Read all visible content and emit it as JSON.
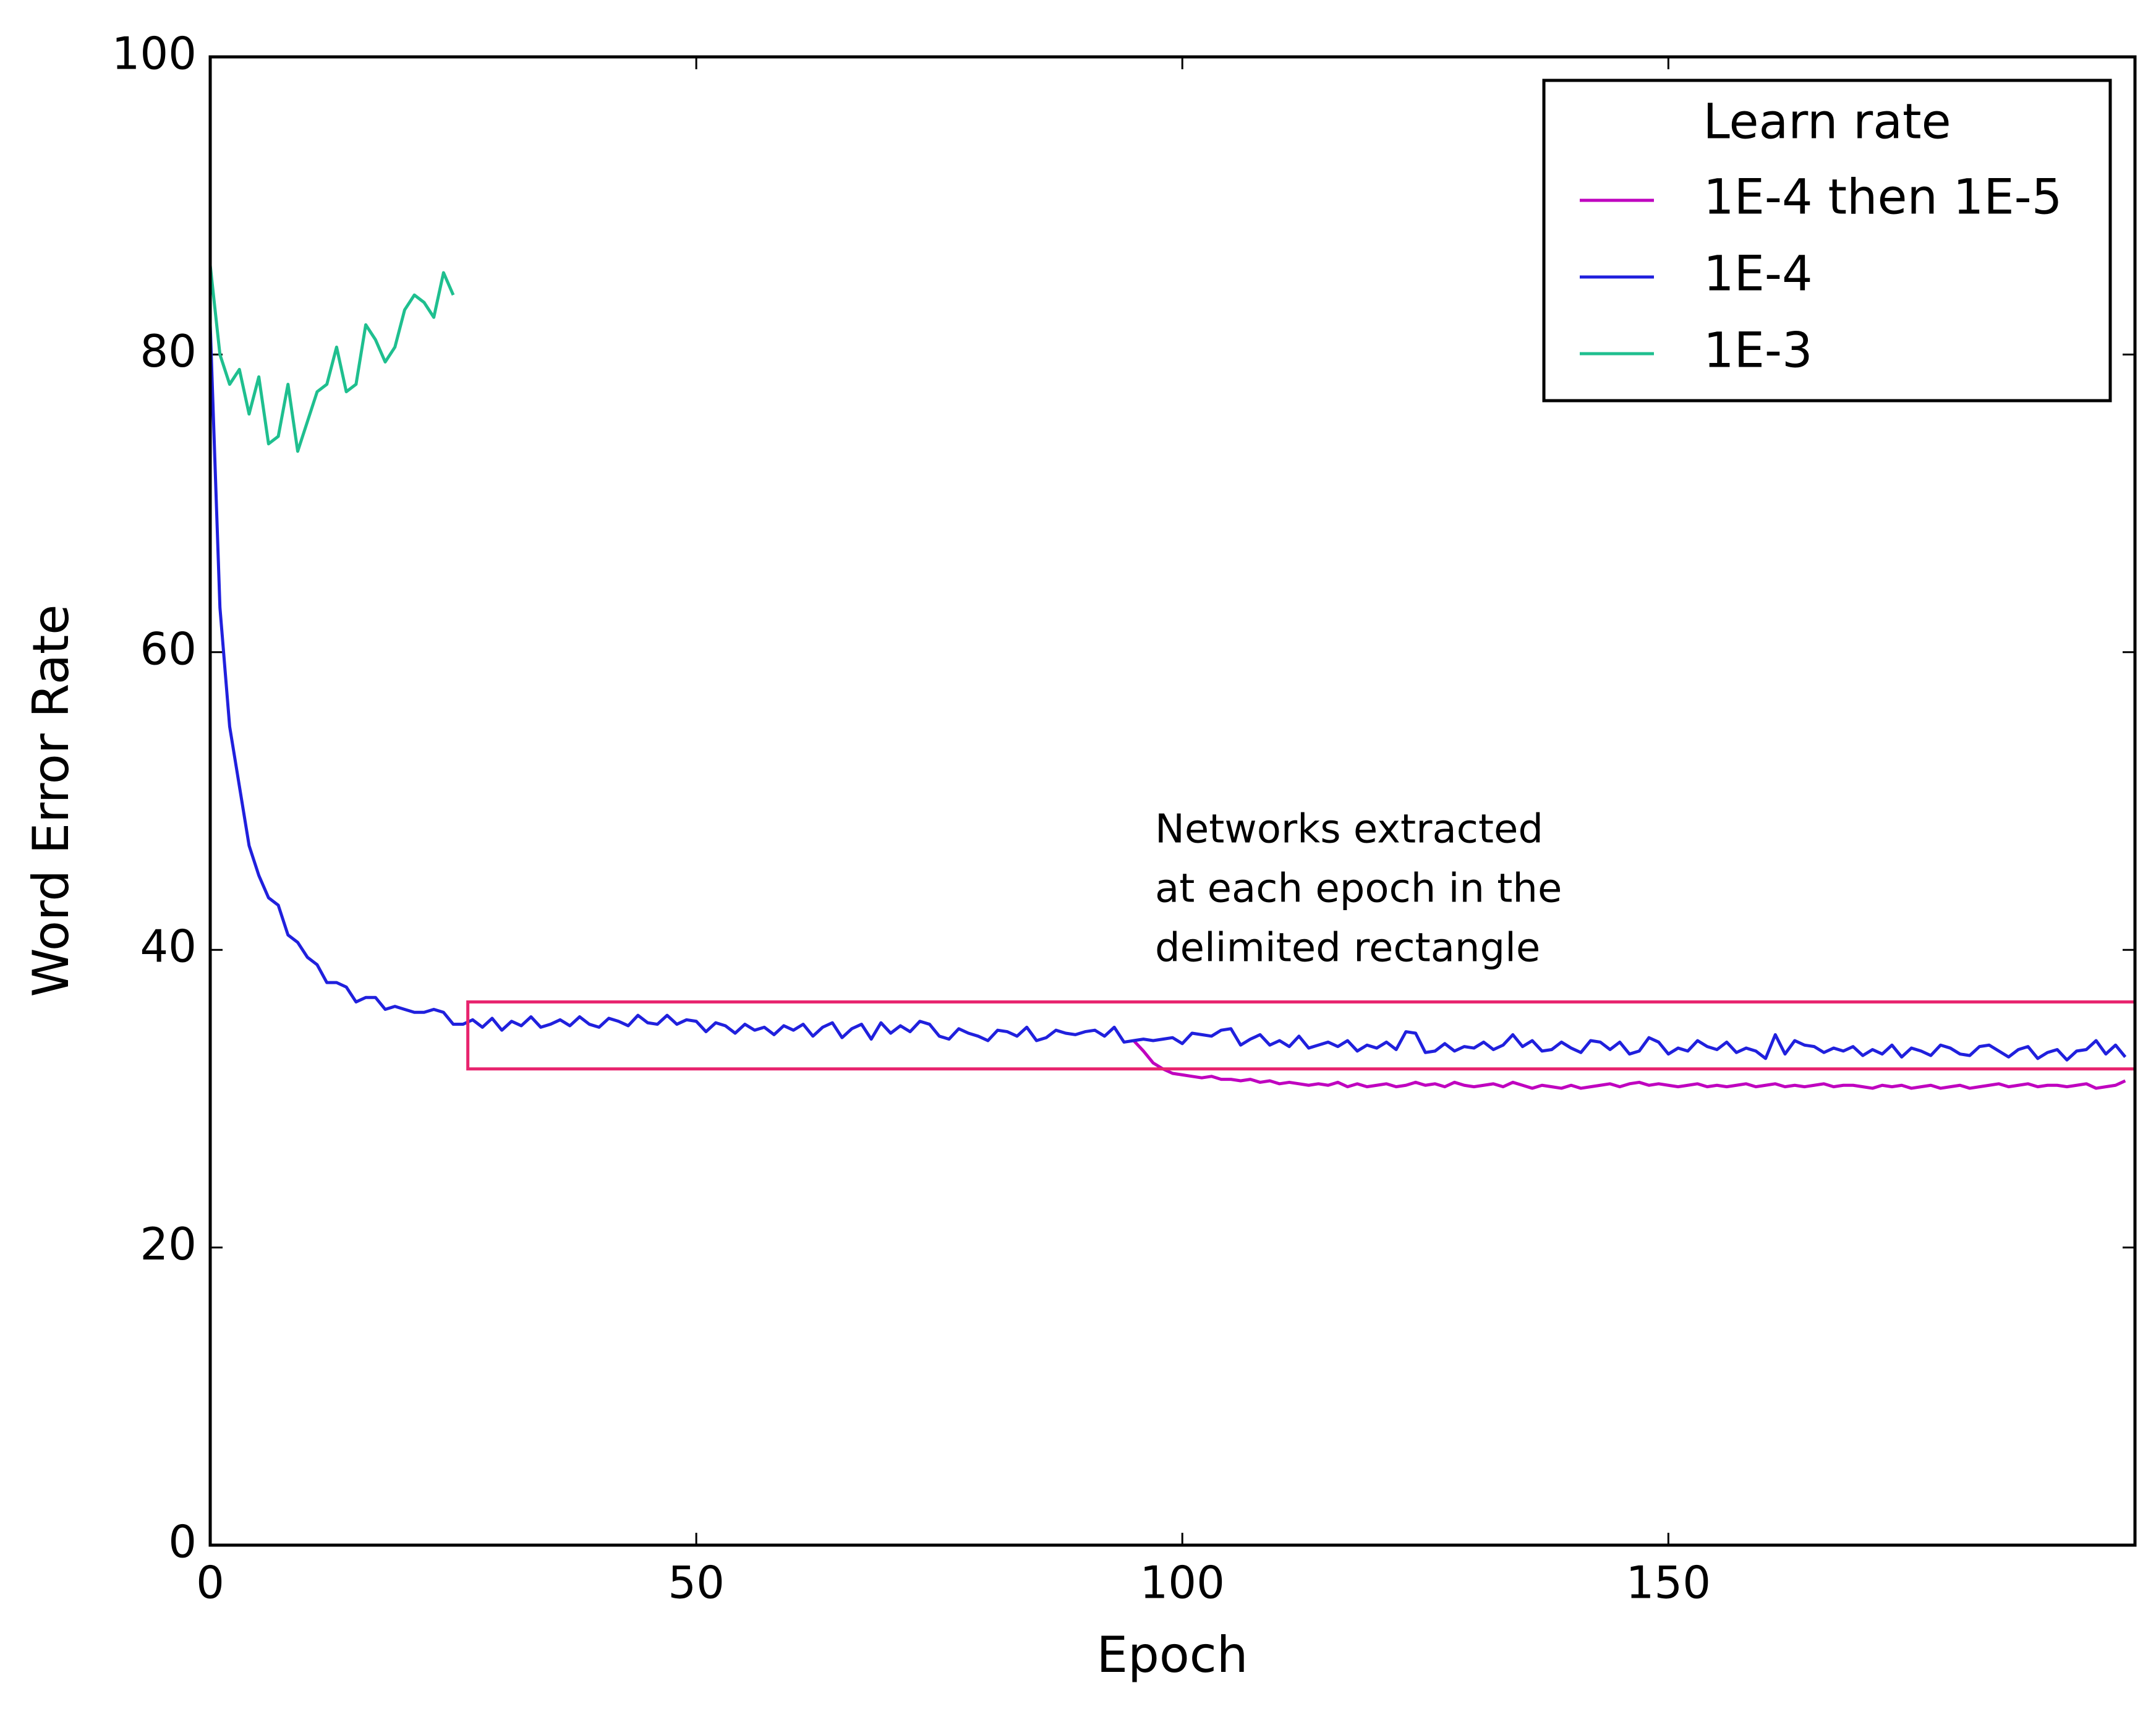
{
  "chart_data": {
    "type": "line",
    "xlabel": "Epoch",
    "ylabel": "Word Error Rate",
    "xlim": [
      0,
      198
    ],
    "ylim": [
      0,
      100
    ],
    "xticks": [
      0,
      50,
      100,
      150
    ],
    "yticks": [
      0,
      20,
      40,
      60,
      80,
      100
    ],
    "legend": {
      "title": "Learn rate",
      "loc": "upper right"
    },
    "series": [
      {
        "name": "1E-4 then 1E-5",
        "color": "#bf00bf",
        "x": [
          95,
          96,
          97,
          98,
          99,
          100,
          101,
          102,
          103,
          104,
          105,
          106,
          107,
          108,
          109,
          110,
          111,
          112,
          113,
          114,
          115,
          116,
          117,
          118,
          119,
          120,
          121,
          122,
          123,
          124,
          125,
          126,
          127,
          128,
          129,
          130,
          131,
          132,
          133,
          134,
          135,
          136,
          137,
          138,
          139,
          140,
          141,
          142,
          143,
          144,
          145,
          146,
          147,
          148,
          149,
          150,
          151,
          152,
          153,
          154,
          155,
          156,
          157,
          158,
          159,
          160,
          161,
          162,
          163,
          164,
          165,
          166,
          167,
          168,
          169,
          170,
          171,
          172,
          173,
          174,
          175,
          176,
          177,
          178,
          179,
          180,
          181,
          182,
          183,
          184,
          185,
          186,
          187,
          188,
          189,
          190,
          191,
          192,
          193,
          194,
          195,
          196,
          197
        ],
        "values": [
          33.9,
          33.2,
          32.4,
          32.0,
          31.7,
          31.6,
          31.5,
          31.4,
          31.5,
          31.3,
          31.3,
          31.2,
          31.3,
          31.1,
          31.2,
          31.0,
          31.1,
          31.0,
          30.9,
          31.0,
          30.9,
          31.1,
          30.8,
          31.0,
          30.8,
          30.9,
          31.0,
          30.8,
          30.9,
          31.1,
          30.9,
          31.0,
          30.8,
          31.1,
          30.9,
          30.8,
          30.9,
          31.0,
          30.8,
          31.1,
          30.9,
          30.7,
          30.9,
          30.8,
          30.7,
          30.9,
          30.7,
          30.8,
          30.9,
          31.0,
          30.8,
          31.0,
          31.1,
          30.9,
          31.0,
          30.9,
          30.8,
          30.9,
          31.0,
          30.8,
          30.9,
          30.8,
          30.9,
          31.0,
          30.8,
          30.9,
          31.0,
          30.8,
          30.9,
          30.8,
          30.9,
          31.0,
          30.8,
          30.9,
          30.9,
          30.8,
          30.7,
          30.9,
          30.8,
          30.9,
          30.7,
          30.8,
          30.9,
          30.7,
          30.8,
          30.9,
          30.7,
          30.8,
          30.9,
          31.0,
          30.8,
          30.9,
          31.0,
          30.8,
          30.9,
          30.9,
          30.8,
          30.9,
          31.0,
          30.7,
          30.8,
          30.9,
          31.2
        ]
      },
      {
        "name": "1E-4",
        "color": "#2020dd",
        "x": [
          0,
          1,
          2,
          3,
          4,
          5,
          6,
          7,
          8,
          9,
          10,
          11,
          12,
          13,
          14,
          15,
          16,
          17,
          18,
          19,
          20,
          21,
          22,
          23,
          24,
          25,
          26,
          27,
          28,
          29,
          30,
          31,
          32,
          33,
          34,
          35,
          36,
          37,
          38,
          39,
          40,
          41,
          42,
          43,
          44,
          45,
          46,
          47,
          48,
          49,
          50,
          51,
          52,
          53,
          54,
          55,
          56,
          57,
          58,
          59,
          60,
          61,
          62,
          63,
          64,
          65,
          66,
          67,
          68,
          69,
          70,
          71,
          72,
          73,
          74,
          75,
          76,
          77,
          78,
          79,
          80,
          81,
          82,
          83,
          84,
          85,
          86,
          87,
          88,
          89,
          90,
          91,
          92,
          93,
          94,
          95,
          96,
          97,
          98,
          99,
          100,
          101,
          102,
          103,
          104,
          105,
          106,
          107,
          108,
          109,
          110,
          111,
          112,
          113,
          114,
          115,
          116,
          117,
          118,
          119,
          120,
          121,
          122,
          123,
          124,
          125,
          126,
          127,
          128,
          129,
          130,
          131,
          132,
          133,
          134,
          135,
          136,
          137,
          138,
          139,
          140,
          141,
          142,
          143,
          144,
          145,
          146,
          147,
          148,
          149,
          150,
          151,
          152,
          153,
          154,
          155,
          156,
          157,
          158,
          159,
          160,
          161,
          162,
          163,
          164,
          165,
          166,
          167,
          168,
          169,
          170,
          171,
          172,
          173,
          174,
          175,
          176,
          177,
          178,
          179,
          180,
          181,
          182,
          183,
          184,
          185,
          186,
          187,
          188,
          189,
          190,
          191,
          192,
          193,
          194,
          195,
          196,
          197
        ],
        "values": [
          82,
          63,
          55,
          51,
          47,
          45,
          43.5,
          43,
          41,
          40.5,
          39.5,
          39,
          37.8,
          37.8,
          37.5,
          36.5,
          36.8,
          36.8,
          36,
          36.2,
          36,
          35.8,
          35.8,
          36,
          35.8,
          35,
          35,
          35.3,
          34.8,
          35.4,
          34.6,
          35.2,
          34.9,
          35.5,
          34.8,
          35.0,
          35.3,
          34.9,
          35.5,
          35.0,
          34.8,
          35.4,
          35.2,
          34.9,
          35.6,
          35.1,
          35.0,
          35.6,
          35.0,
          35.3,
          35.2,
          34.5,
          35.1,
          34.9,
          34.4,
          35.0,
          34.6,
          34.8,
          34.3,
          34.9,
          34.6,
          35.0,
          34.2,
          34.8,
          35.1,
          34.1,
          34.7,
          35.0,
          34.0,
          35.1,
          34.4,
          34.9,
          34.5,
          35.2,
          35.0,
          34.2,
          34.0,
          34.7,
          34.4,
          34.2,
          33.9,
          34.6,
          34.5,
          34.2,
          34.8,
          33.9,
          34.1,
          34.6,
          34.4,
          34.3,
          34.5,
          34.6,
          34.2,
          34.8,
          33.8,
          33.9,
          34.0,
          33.9,
          34.0,
          34.1,
          33.7,
          34.4,
          34.3,
          34.2,
          34.6,
          34.7,
          33.6,
          34.0,
          34.3,
          33.6,
          33.9,
          33.5,
          34.2,
          33.4,
          33.6,
          33.8,
          33.5,
          33.9,
          33.2,
          33.6,
          33.4,
          33.8,
          33.3,
          34.5,
          34.4,
          33.1,
          33.2,
          33.7,
          33.2,
          33.5,
          33.4,
          33.8,
          33.3,
          33.6,
          34.3,
          33.5,
          33.9,
          33.2,
          33.3,
          33.8,
          33.4,
          33.1,
          33.9,
          33.8,
          33.3,
          33.8,
          33.0,
          33.2,
          34.1,
          33.8,
          33.0,
          33.4,
          33.2,
          33.9,
          33.5,
          33.3,
          33.8,
          33.1,
          33.4,
          33.2,
          32.7,
          34.3,
          33.0,
          33.9,
          33.6,
          33.5,
          33.1,
          33.4,
          33.2,
          33.5,
          32.9,
          33.3,
          33.0,
          33.6,
          32.8,
          33.4,
          33.2,
          32.9,
          33.6,
          33.4,
          33.0,
          32.9,
          33.5,
          33.6,
          33.2,
          32.8,
          33.3,
          33.5,
          32.7,
          33.1,
          33.3,
          32.6,
          33.2,
          33.3,
          33.9,
          33.0,
          33.6,
          32.8
        ]
      },
      {
        "name": "1E-3",
        "color": "#1fbf8f",
        "x": [
          0,
          1,
          2,
          3,
          4,
          5,
          6,
          7,
          8,
          9,
          10,
          11,
          12,
          13,
          14,
          15,
          16,
          17,
          18,
          19,
          20,
          21,
          22,
          23,
          24,
          25
        ],
        "values": [
          86,
          80,
          78,
          79,
          76,
          78.5,
          74,
          74.5,
          78,
          73.5,
          75.5,
          77.5,
          78,
          80.5,
          77.5,
          78,
          82,
          81,
          79.5,
          80.5,
          83,
          84,
          83.5,
          82.5,
          85.5,
          84
        ]
      }
    ],
    "annotation": {
      "lines": [
        "Networks extracted",
        "at each epoch in the",
        "delimited rectangle"
      ],
      "box": {
        "xlim": [
          26.5,
          198
        ],
        "ylim": [
          32,
          36.5
        ],
        "color": "#e8246e"
      }
    }
  }
}
